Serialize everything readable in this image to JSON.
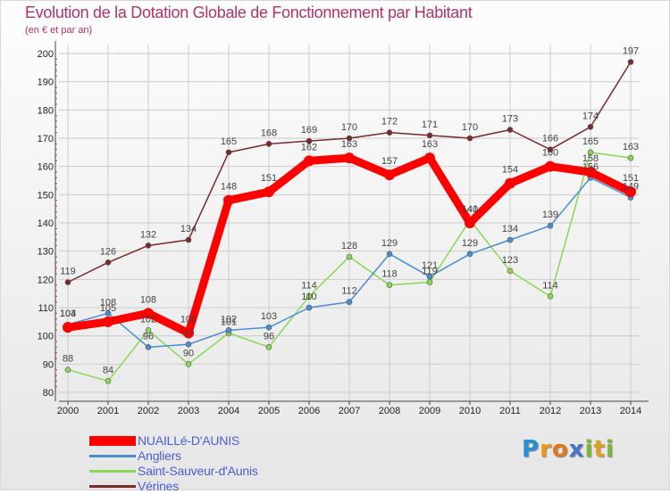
{
  "header": {
    "title": "Evolution de la Dotation Globale de Fonctionnement par Habitant",
    "subtitle": "(en € et par an)"
  },
  "logo": {
    "text": "Proxiti",
    "letters": [
      {
        "char": "P",
        "color": "#2a8fd0"
      },
      {
        "char": "r",
        "color": "#e89a1c"
      },
      {
        "char": "o",
        "color": "#e07820"
      },
      {
        "char": "x",
        "color": "#4a76c8"
      },
      {
        "char": "i",
        "color": "#7cb83a"
      },
      {
        "char": "t",
        "color": "#e0a020"
      },
      {
        "char": "i",
        "color": "#7cb83a"
      }
    ]
  },
  "colors": {
    "gridline": "#cccccc",
    "axis": "#444444",
    "minor_tick": "#cc3366"
  },
  "chart_data": {
    "type": "line",
    "title": "Evolution de la Dotation Globale de Fonctionnement par Habitant",
    "subtitle": "(en € et par an)",
    "xlabel": "",
    "ylabel": "",
    "ylim": [
      80,
      200
    ],
    "y_ticks": [
      80,
      90,
      100,
      110,
      120,
      130,
      140,
      150,
      160,
      170,
      180,
      190,
      200
    ],
    "grid": true,
    "legend_position": "bottom-left",
    "categories": [
      "2000",
      "2001",
      "2002",
      "2003",
      "2004",
      "2005",
      "2006",
      "2007",
      "2008",
      "2009",
      "2010",
      "2011",
      "2012",
      "2013",
      "2014"
    ],
    "series": [
      {
        "name": "Vérines",
        "color": "#7a2a2a",
        "values": [
          119,
          126,
          132,
          134,
          165,
          168,
          169,
          170,
          172,
          171,
          170,
          173,
          166,
          174,
          197
        ],
        "labels": [
          "119",
          "126",
          "132",
          "134",
          "165",
          "168",
          "169",
          "170",
          "172",
          "171",
          "170",
          "173",
          "166",
          "174",
          "197"
        ]
      },
      {
        "name": "Saint-Sauveur-d'Aunis",
        "color": "#88d855",
        "values": [
          88,
          84,
          102,
          90,
          101,
          96,
          114,
          128,
          118,
          119,
          141,
          123,
          114,
          165,
          163
        ],
        "labels": [
          "88",
          "84",
          "102",
          "90",
          "101",
          "96",
          "114",
          "128",
          "118",
          "119",
          "141",
          "123",
          "114",
          "165",
          "163"
        ]
      },
      {
        "name": "Angliers",
        "color": "#4a8ed0",
        "values": [
          104,
          108,
          96,
          97,
          102,
          103,
          110,
          112,
          129,
          121,
          129,
          134,
          139,
          156,
          149
        ],
        "labels": [
          "104",
          "108",
          "96",
          "97",
          "102",
          "103",
          "110",
          "112",
          "129",
          "121",
          "129",
          "134",
          "139",
          "156",
          "149"
        ]
      },
      {
        "name": "NUAILLé-D'AUNIS",
        "color": "#ff0000",
        "values": [
          103,
          105,
          108,
          101,
          148,
          151,
          162,
          163,
          157,
          163,
          140,
          154,
          160,
          158,
          151
        ],
        "labels": [
          "103",
          "105",
          "108",
          "101",
          "148",
          "151",
          "162",
          "163",
          "157",
          "163",
          "140",
          "154",
          "160",
          "158",
          "151"
        ]
      }
    ],
    "legend_order": [
      "NUAILLé-D'AUNIS",
      "Angliers",
      "Saint-Sauveur-d'Aunis",
      "Vérines"
    ]
  }
}
